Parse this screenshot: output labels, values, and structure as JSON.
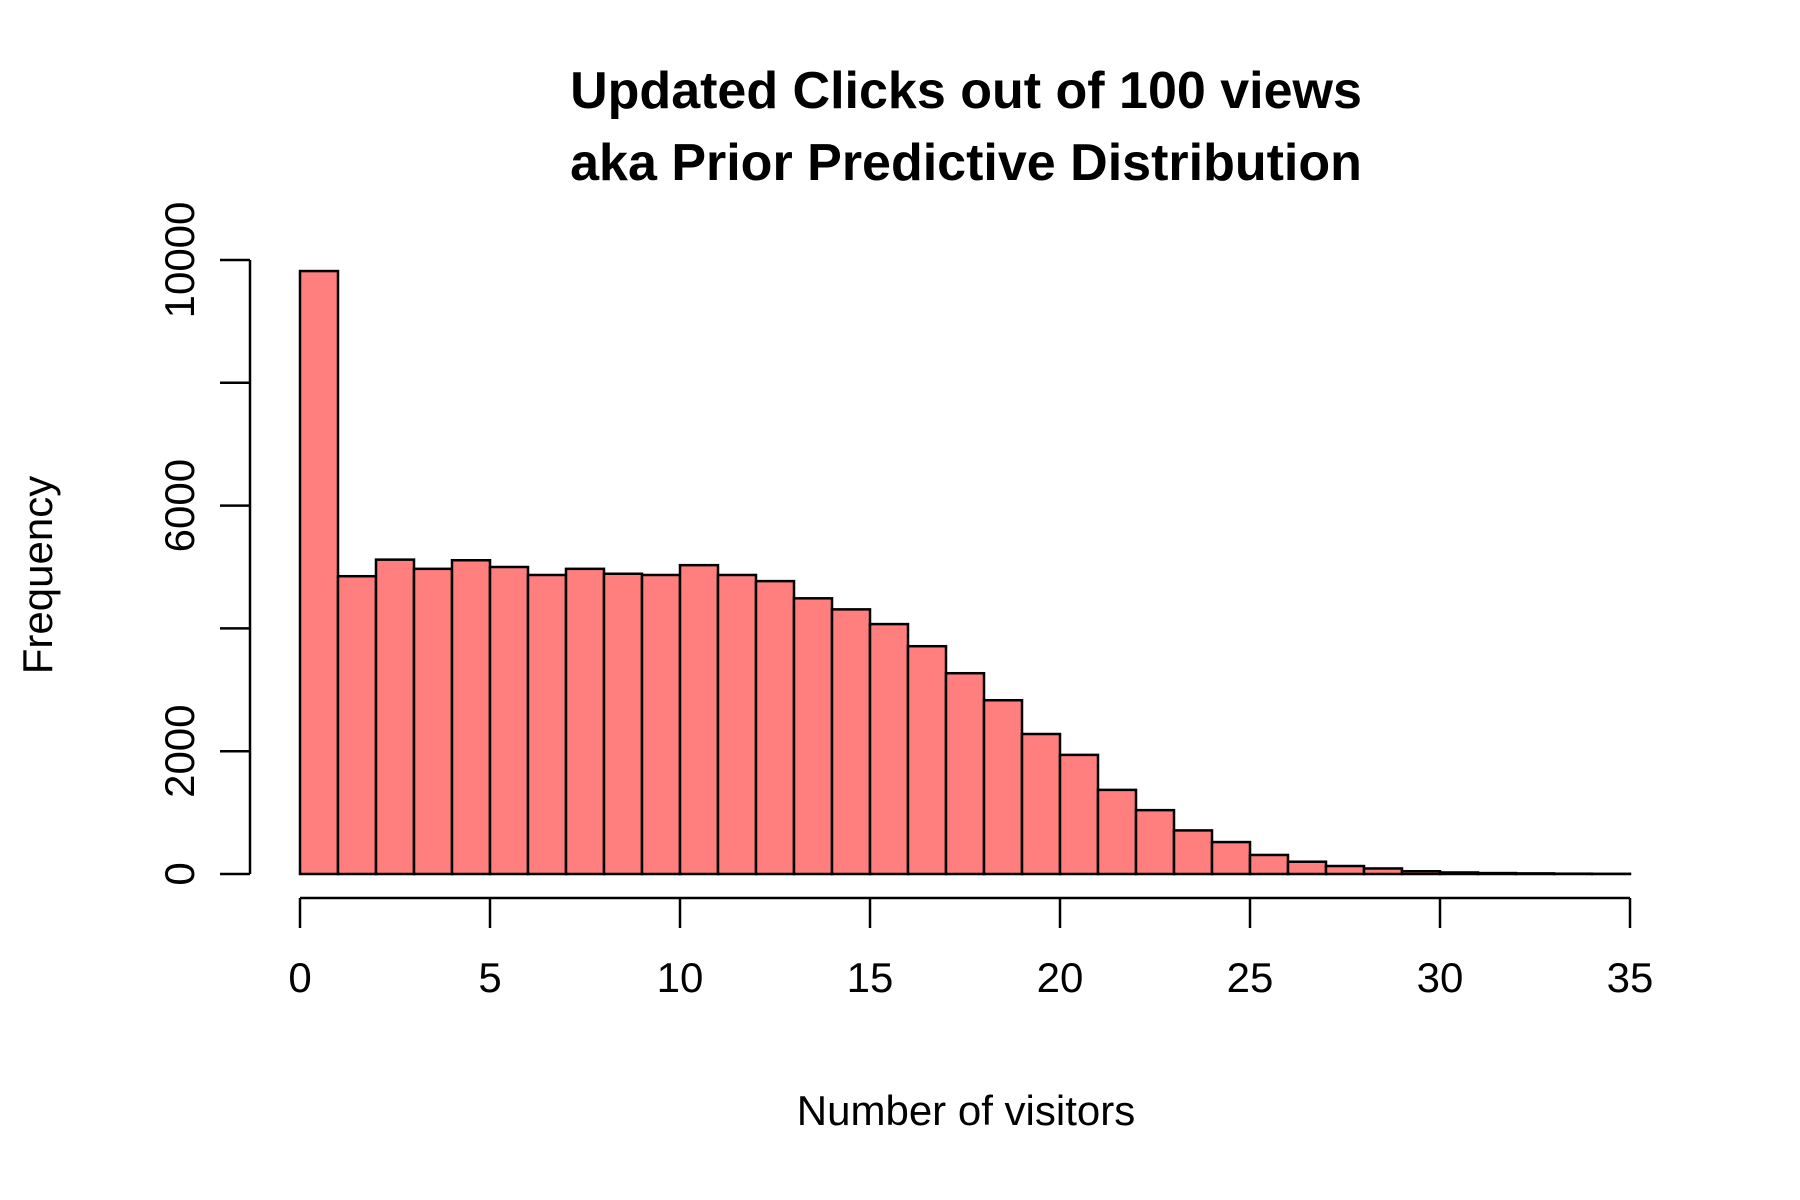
{
  "chart_data": {
    "type": "bar",
    "title_line1": "Updated Clicks out of 100 views",
    "title_line2": "aka Prior Predictive Distribution",
    "xlabel": "Number of visitors",
    "ylabel": "Frequency",
    "xlim": [
      0,
      35
    ],
    "ylim": [
      0,
      10000
    ],
    "x_ticks": [
      0,
      5,
      10,
      15,
      20,
      25,
      30,
      35
    ],
    "y_ticks": [
      0,
      2000,
      4000,
      6000,
      8000,
      10000
    ],
    "y_tick_labels_shown": [
      "0",
      "2000",
      "6000",
      "10000"
    ],
    "bin_width": 1,
    "bin_starts": [
      0,
      1,
      2,
      3,
      4,
      5,
      6,
      7,
      8,
      9,
      10,
      11,
      12,
      13,
      14,
      15,
      16,
      17,
      18,
      19,
      20,
      21,
      22,
      23,
      24,
      25,
      26,
      27,
      28,
      29,
      30,
      31,
      32,
      33,
      34
    ],
    "values": [
      9820,
      4850,
      5120,
      4970,
      5110,
      5000,
      4870,
      4970,
      4890,
      4870,
      5030,
      4870,
      4770,
      4490,
      4310,
      4070,
      3710,
      3270,
      2830,
      2280,
      1940,
      1370,
      1040,
      710,
      520,
      310,
      200,
      130,
      90,
      45,
      25,
      15,
      10,
      5,
      3
    ],
    "bar_color": "#ff7f7f",
    "grid": false,
    "legend": "none"
  }
}
